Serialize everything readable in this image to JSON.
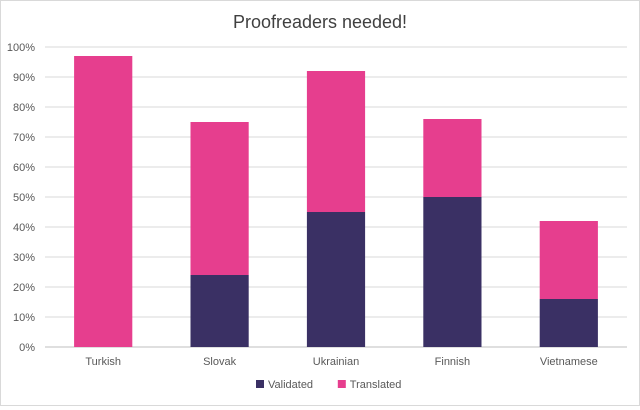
{
  "chart_data": {
    "type": "bar",
    "stacked": true,
    "title": "Proofreaders needed!",
    "xlabel": "",
    "ylabel": "",
    "categories": [
      "Turkish",
      "Slovak",
      "Ukrainian",
      "Finnish",
      "Vietnamese"
    ],
    "y_ticks": [
      "0%",
      "10%",
      "20%",
      "30%",
      "40%",
      "50%",
      "60%",
      "70%",
      "80%",
      "90%",
      "100%"
    ],
    "ylim": [
      0,
      100
    ],
    "grid": true,
    "legend": "bottom",
    "series": [
      {
        "name": "Validated",
        "color": "#3a3064",
        "values": [
          0,
          24,
          45,
          50,
          16
        ]
      },
      {
        "name": "Translated",
        "color": "#e63e8e",
        "values": [
          97,
          51,
          47,
          26,
          26
        ]
      }
    ]
  }
}
